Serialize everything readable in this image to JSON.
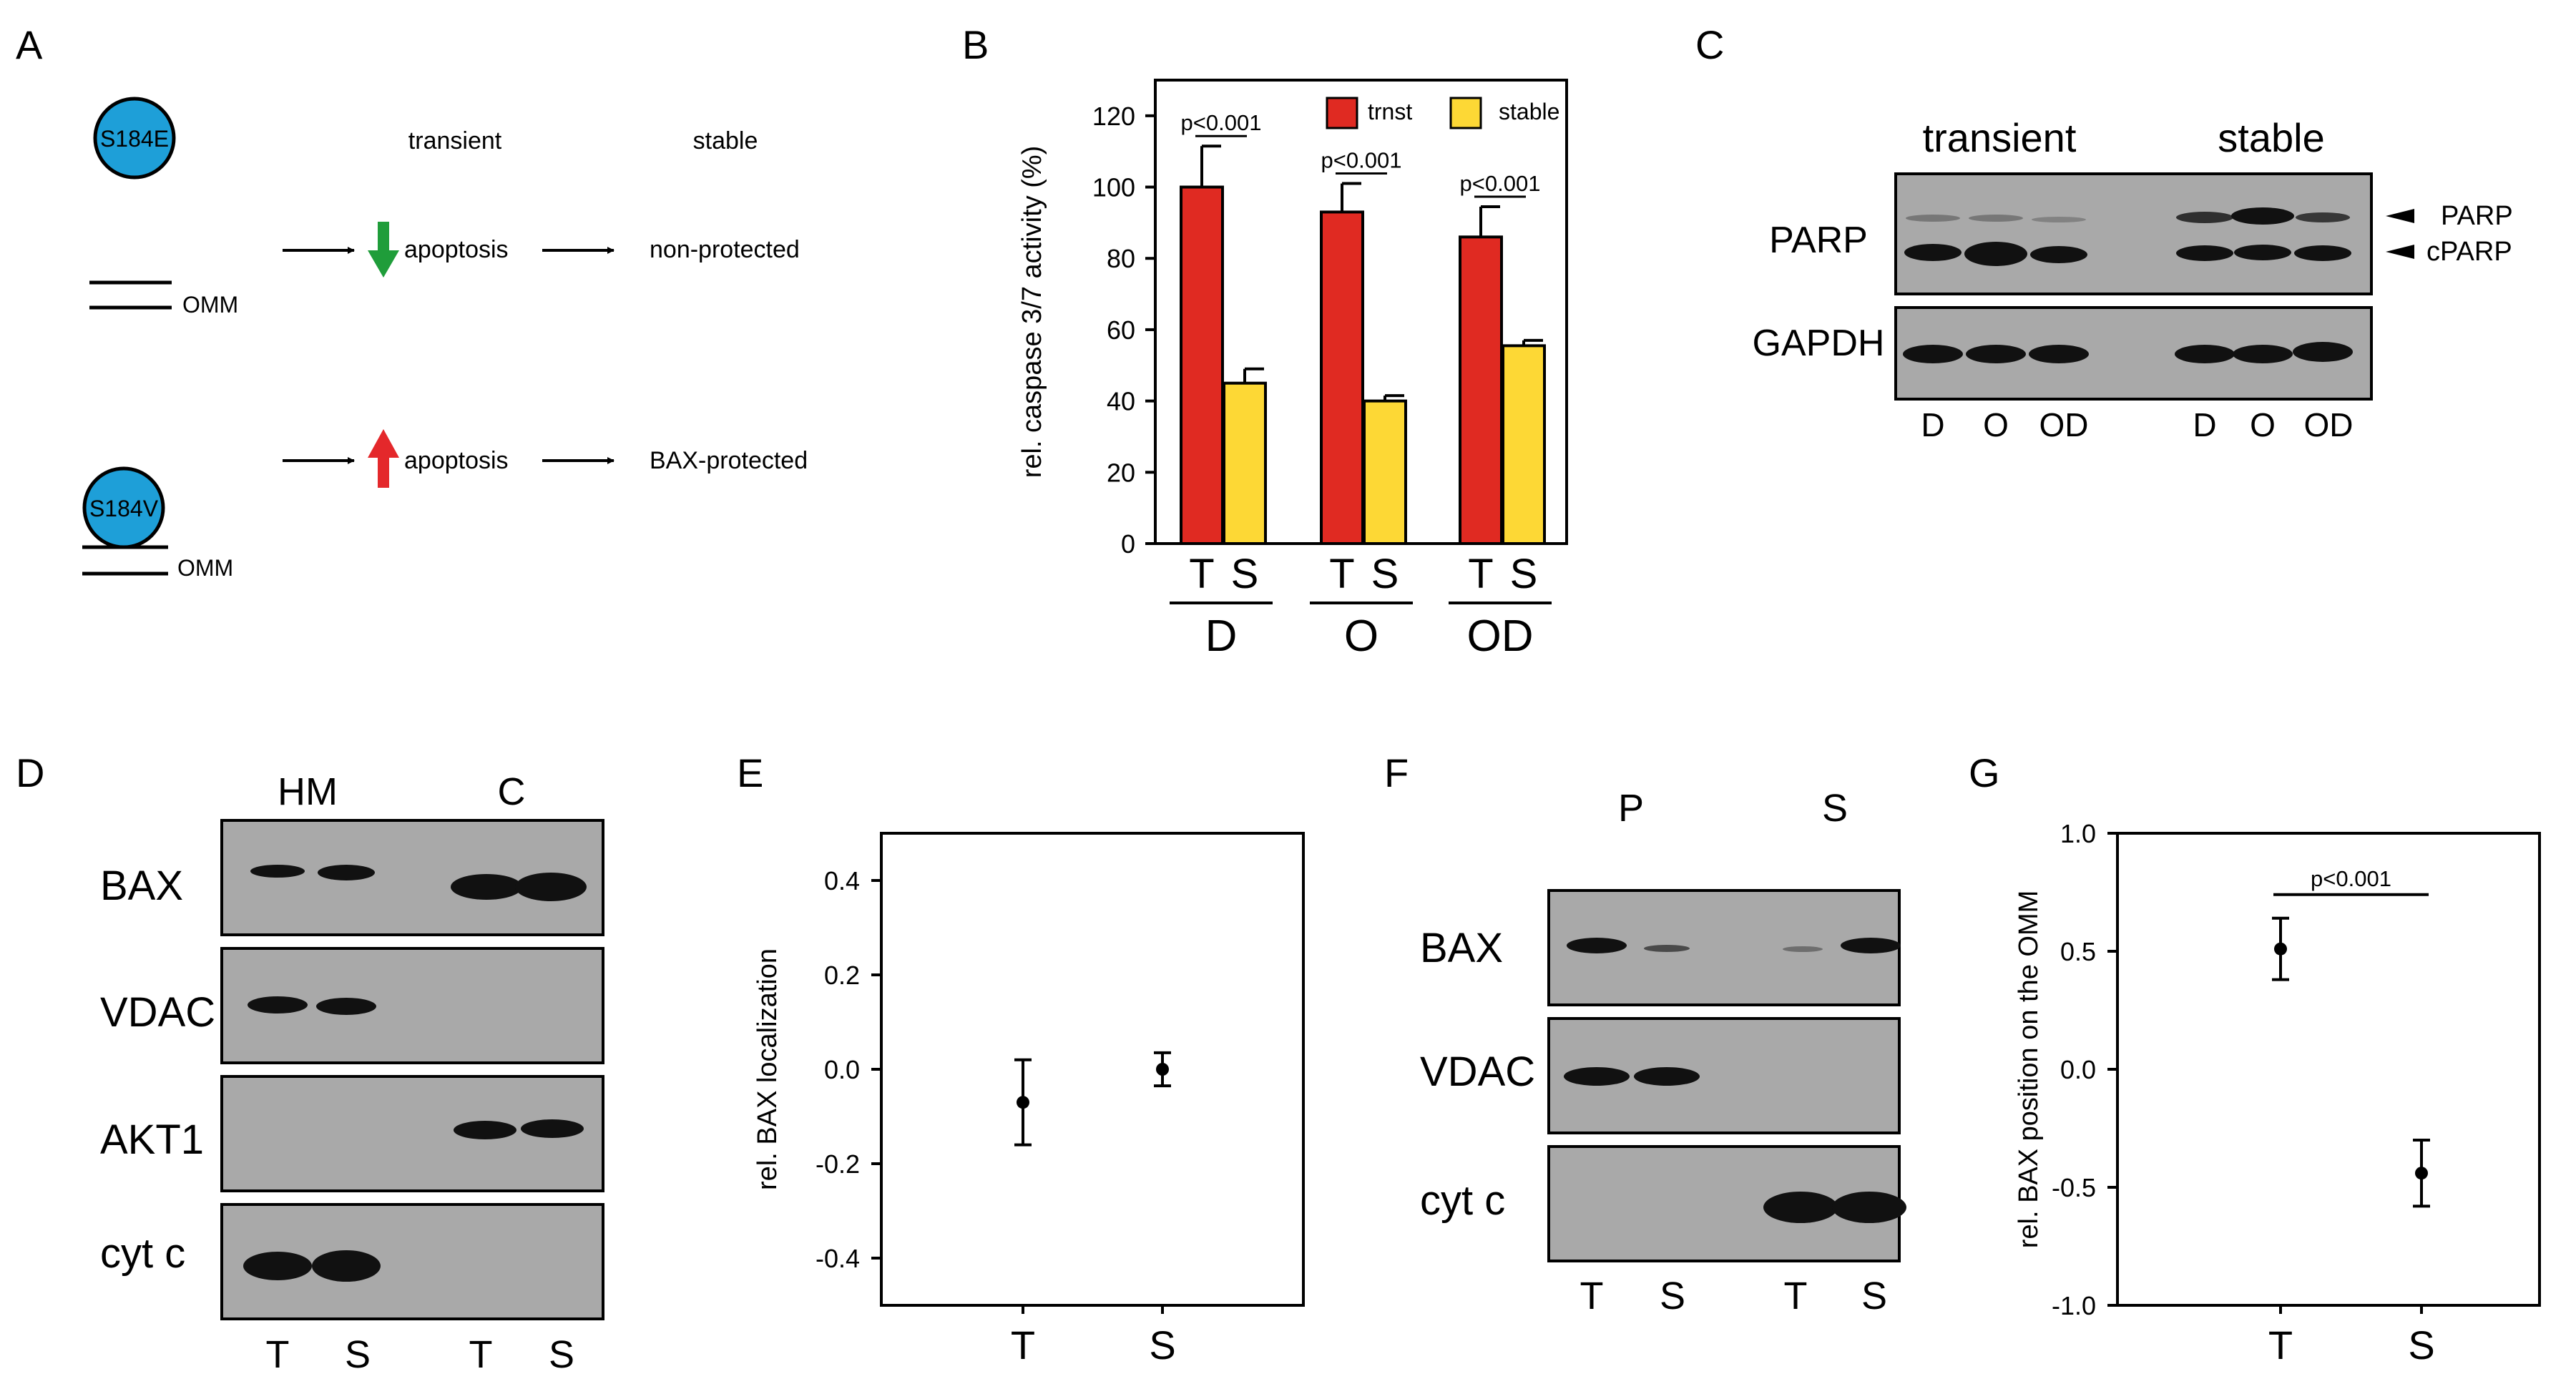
{
  "panel_letters": {
    "A": "A",
    "B": "B",
    "C": "C",
    "D": "D",
    "E": "E",
    "F": "F",
    "G": "G"
  },
  "colors": {
    "trnst": "#e02a22",
    "stable": "#fdd835",
    "protein": "#1e9fd8",
    "down_arrow": "#1f9d3a",
    "up_arrow": "#e4282b",
    "blot_bg": "#a9a9a9",
    "band": "#161616"
  },
  "panelA": {
    "col_transient": "transient",
    "col_stable": "stable",
    "row1": {
      "protein": "S184E",
      "membrane": "OMM",
      "effect": "apoptosis",
      "outcome": "non-protected"
    },
    "row2": {
      "protein": "S184V",
      "membrane": "OMM",
      "effect": "apoptosis",
      "outcome": "BAX-protected"
    }
  },
  "chart_data": [
    {
      "panel": "B",
      "type": "bar",
      "ylabel": "rel. caspase 3/7 activity (%)",
      "ylim": [
        0,
        130
      ],
      "yticks": [
        0,
        20,
        40,
        60,
        80,
        100,
        120
      ],
      "groups": [
        "D",
        "O",
        "OD"
      ],
      "bar_labels": [
        "T",
        "S"
      ],
      "series": [
        {
          "name": "trnst",
          "values": [
            100,
            93,
            86
          ],
          "errors": [
            11.5,
            8,
            8.5
          ]
        },
        {
          "name": "stable",
          "values": [
            45,
            40,
            55.5
          ],
          "errors": [
            4,
            1.5,
            1.5
          ]
        }
      ],
      "annotations": [
        "p<0.001",
        "p<0.001",
        "p<0.001"
      ],
      "legend": "top-right"
    },
    {
      "panel": "E",
      "type": "scatter",
      "ylabel": "rel. BAX localization",
      "ylim": [
        -0.5,
        0.5
      ],
      "yticks": [
        0.4,
        0.2,
        0.0,
        -0.2,
        -0.4
      ],
      "ytick_labels": [
        "0.4",
        "0.2",
        "0.0",
        "-0.2",
        "-0.4"
      ],
      "categories": [
        "T",
        "S"
      ],
      "values": [
        -0.07,
        0.0
      ],
      "errors": [
        0.09,
        0.035
      ]
    },
    {
      "panel": "G",
      "type": "scatter",
      "ylabel": "rel. BAX position on the OMM",
      "ylim": [
        -1.0,
        1.0
      ],
      "yticks": [
        1.0,
        0.5,
        0.0,
        -0.5,
        -1.0
      ],
      "ytick_labels": [
        "1.0",
        "0.5",
        "0.0",
        "-0.5",
        "-1.0"
      ],
      "categories": [
        "T",
        "S"
      ],
      "values": [
        0.51,
        -0.44
      ],
      "errors": [
        0.13,
        0.14
      ],
      "annotation": "p<0.001"
    }
  ],
  "panelC": {
    "header_transient": "transient",
    "header_stable": "stable",
    "row_parp": "PARP",
    "row_gapdh": "GAPDH",
    "marker_parp": "PARP",
    "marker_cparp": "cPARP",
    "lanes": [
      "D",
      "O",
      "OD",
      "D",
      "O",
      "OD"
    ]
  },
  "panelD": {
    "header_hm": "HM",
    "header_c": "C",
    "rows": [
      "BAX",
      "VDAC",
      "AKT1",
      "cyt c"
    ],
    "lanes": [
      "T",
      "S",
      "T",
      "S"
    ]
  },
  "panelF": {
    "header_p": "P",
    "header_s": "S",
    "rows": [
      "BAX",
      "VDAC",
      "cyt c"
    ],
    "lanes": [
      "T",
      "S",
      "T",
      "S"
    ]
  }
}
